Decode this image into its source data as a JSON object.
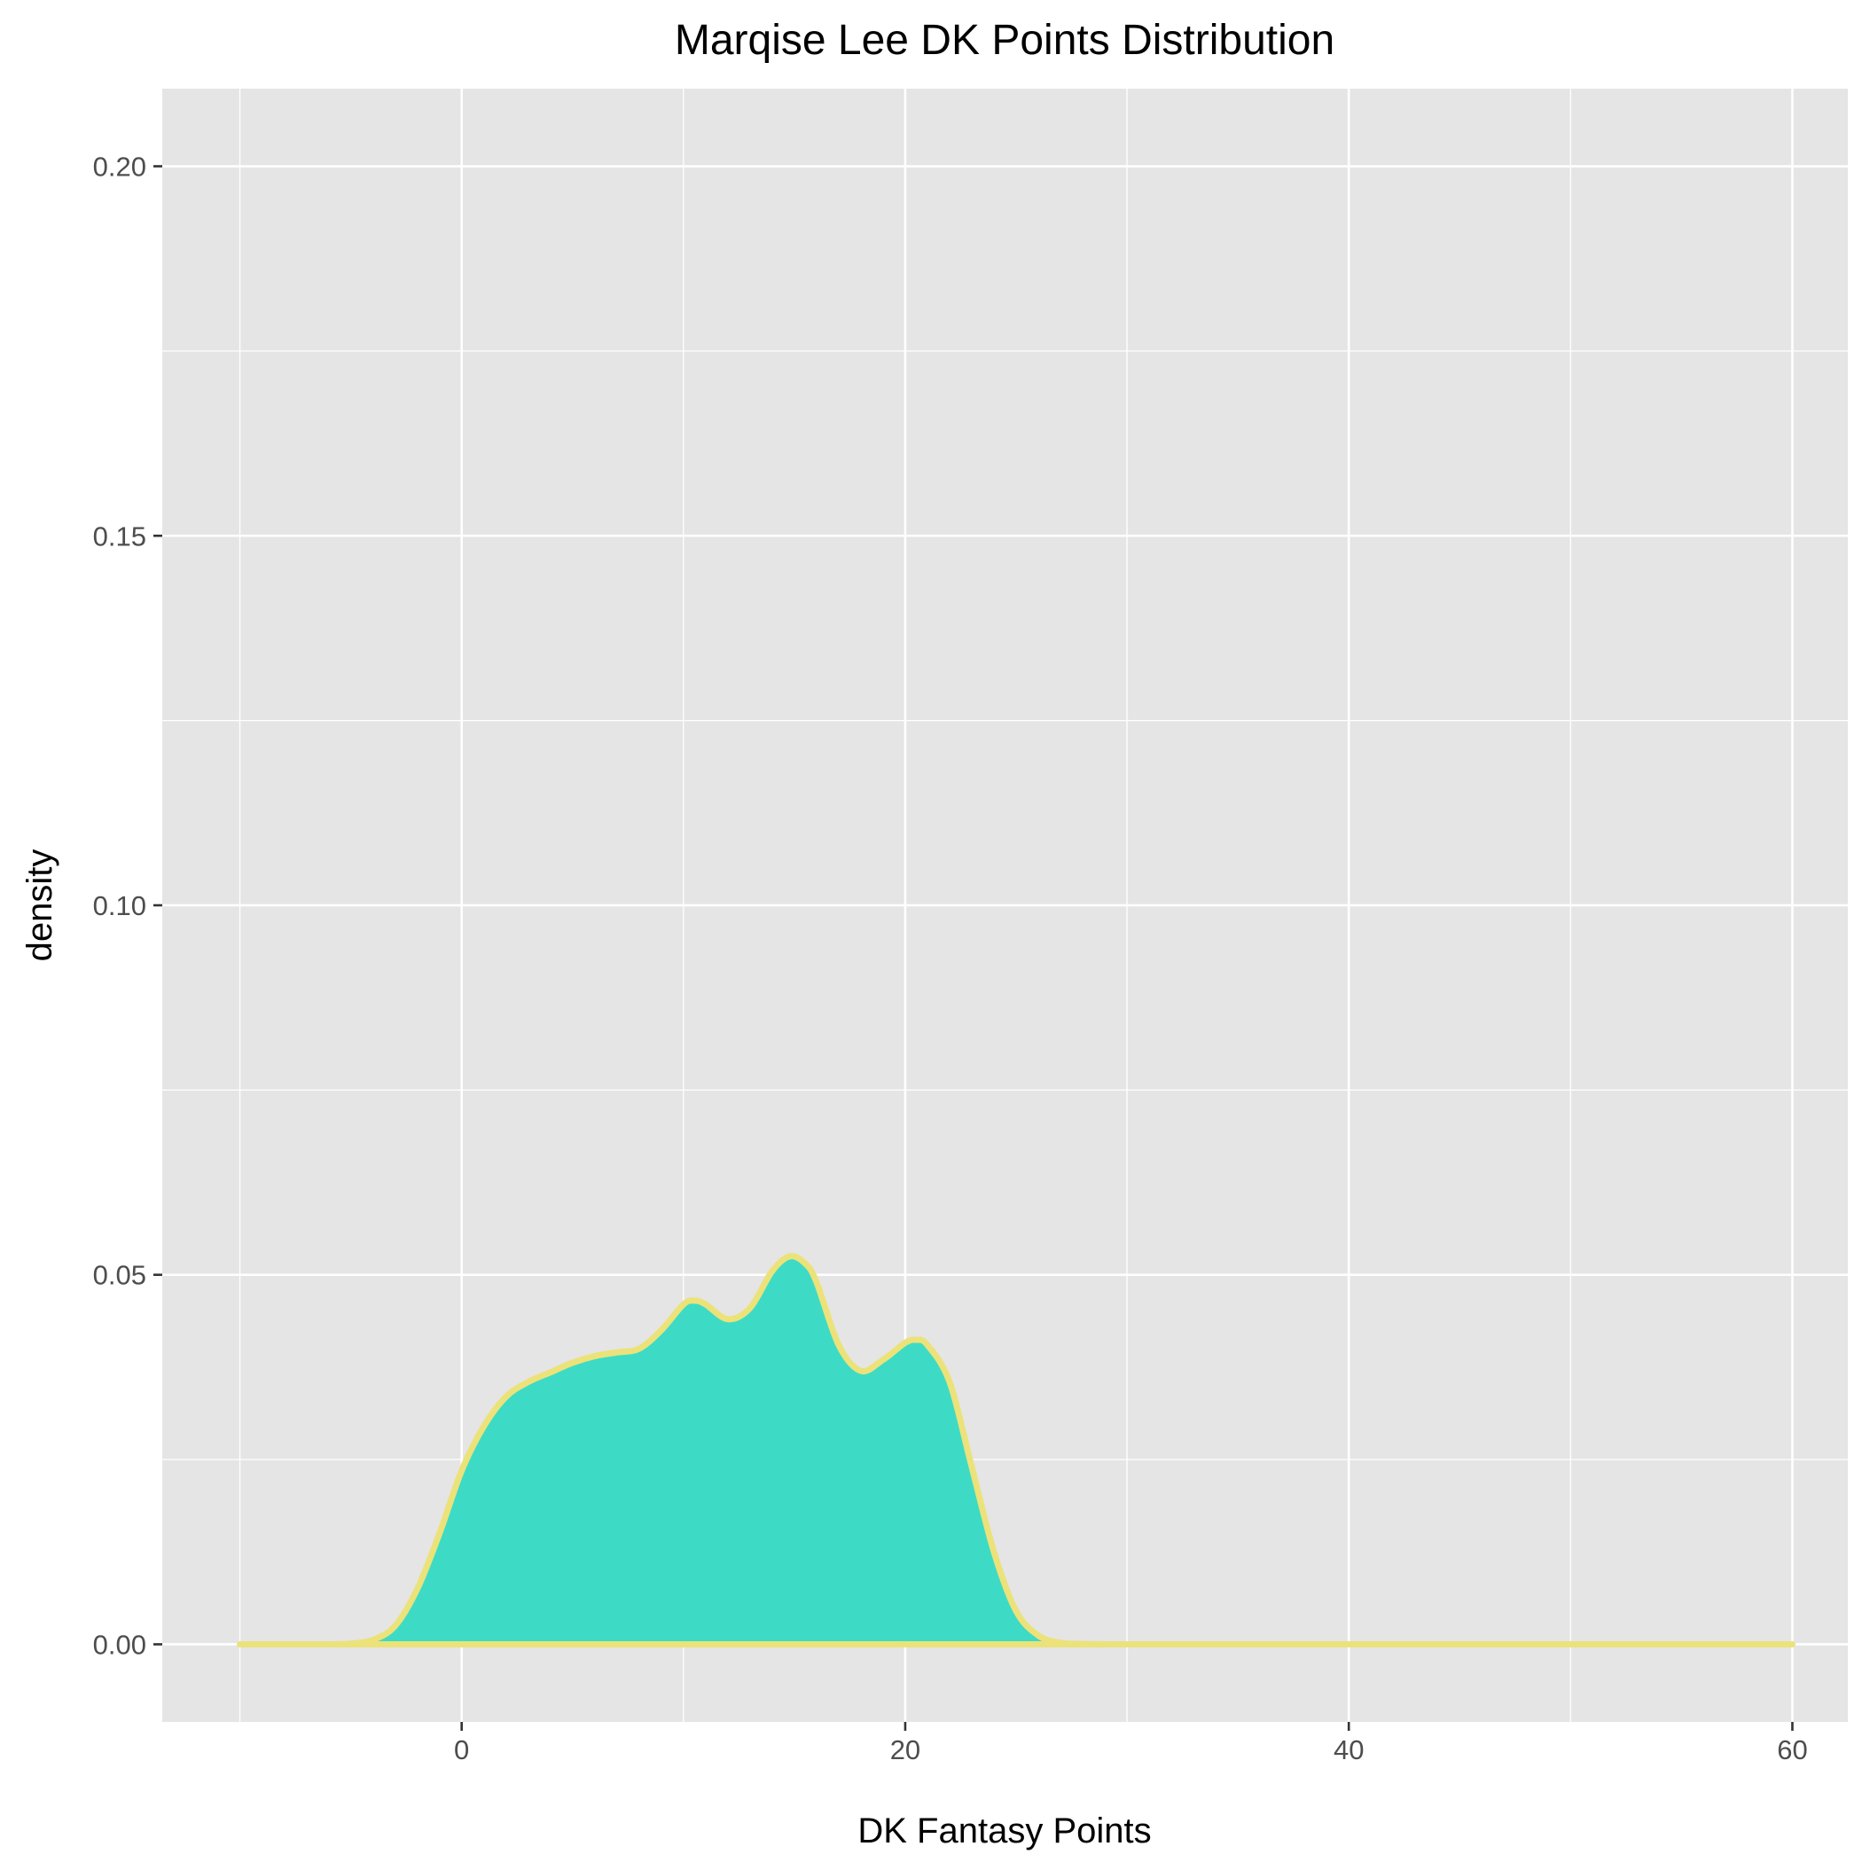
{
  "chart_data": {
    "type": "area",
    "title": "Marqise Lee DK Points Distribution",
    "xlabel": "DK Fantasy Points",
    "ylabel": "density",
    "xlim": [
      -13.5,
      62.5
    ],
    "ylim": [
      -0.0105,
      0.2105
    ],
    "x_ticks": [
      0,
      20,
      40,
      60
    ],
    "x_tick_labels": [
      "0",
      "20",
      "40",
      "60"
    ],
    "x_minor_ticks": [
      -10,
      10,
      30,
      50
    ],
    "y_ticks": [
      0.0,
      0.05,
      0.1,
      0.15,
      0.2
    ],
    "y_tick_labels": [
      "0.00",
      "0.05",
      "0.10",
      "0.15",
      "0.20"
    ],
    "y_minor_ticks": [
      0.025,
      0.075,
      0.125,
      0.175
    ],
    "grid": true,
    "series": [
      {
        "x": [
          -10,
          -6,
          -5,
          -4,
          -3,
          -2,
          -1,
          0,
          1,
          2,
          3,
          4,
          5,
          6,
          7,
          8,
          9,
          10,
          10.5,
          11,
          12,
          13,
          14,
          14.8,
          15.5,
          16,
          17,
          18,
          19,
          20,
          20.5,
          21,
          22,
          23,
          24,
          25,
          26,
          27,
          28,
          30,
          40,
          50,
          60
        ],
        "y": [
          0,
          0,
          0.0001,
          0.0006,
          0.0025,
          0.0075,
          0.015,
          0.0235,
          0.0295,
          0.0335,
          0.0355,
          0.0368,
          0.0381,
          0.039,
          0.0395,
          0.04,
          0.0425,
          0.046,
          0.0465,
          0.046,
          0.044,
          0.0455,
          0.0505,
          0.0525,
          0.0515,
          0.049,
          0.0405,
          0.037,
          0.0385,
          0.0408,
          0.0412,
          0.0405,
          0.0355,
          0.024,
          0.0125,
          0.0045,
          0.0012,
          0.0002,
          5e-05,
          0,
          0,
          0,
          0
        ]
      }
    ]
  },
  "colors": {
    "panel_background": "#e5e5e5",
    "grid": "#ffffff",
    "fill": "#3ddbc5",
    "outline": "#ece27a",
    "tick": "#333333",
    "tick_label": "#4d4d4d"
  }
}
